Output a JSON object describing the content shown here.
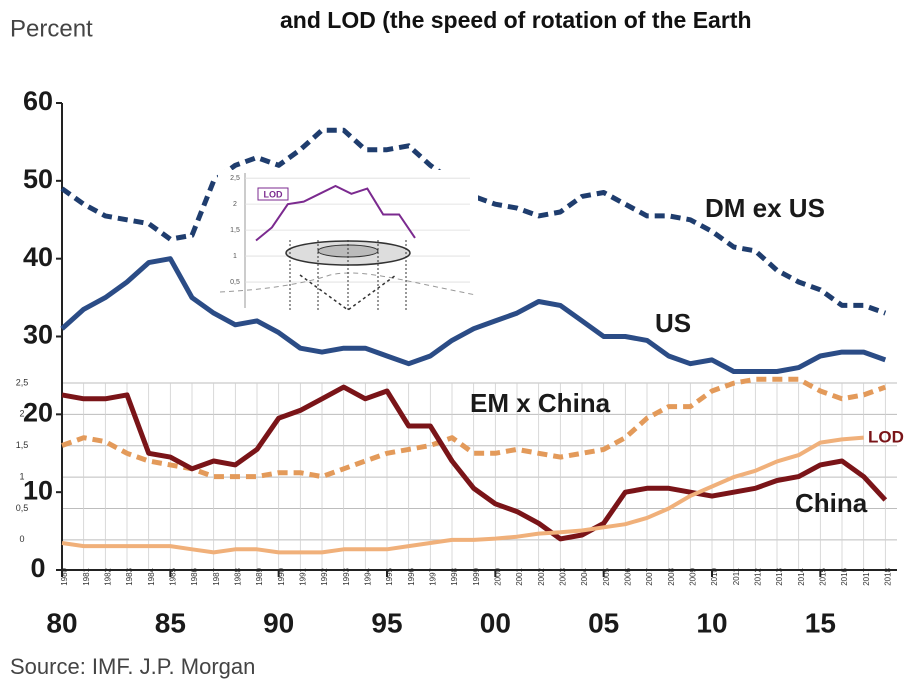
{
  "chart_data": {
    "type": "line",
    "title": "and LOD  (the speed of  rotation of the Earth",
    "y_label": "Percent",
    "source": "Source: IMF. J.P. Morgan",
    "x": [
      1980,
      1981,
      1982,
      1983,
      1984,
      1985,
      1986,
      1987,
      1988,
      1989,
      1990,
      1991,
      1992,
      1993,
      1994,
      1995,
      1996,
      1997,
      1998,
      1999,
      2000,
      2001,
      2002,
      2003,
      2004,
      2005,
      2006,
      2007,
      2008,
      2009,
      2010,
      2011,
      2012,
      2013,
      2014,
      2015,
      2016,
      2017,
      2018
    ],
    "xlim": [
      1980,
      2019
    ],
    "xticks": [
      {
        "value": 1980,
        "label": "80"
      },
      {
        "value": 1985,
        "label": "85"
      },
      {
        "value": 1990,
        "label": "90"
      },
      {
        "value": 1995,
        "label": "95"
      },
      {
        "value": 2000,
        "label": "00"
      },
      {
        "value": 2005,
        "label": "05"
      },
      {
        "value": 2010,
        "label": "10"
      },
      {
        "value": 2015,
        "label": "15"
      }
    ],
    "ylim": [
      0,
      60
    ],
    "yticks": [
      0,
      10,
      20,
      30,
      40,
      50,
      60
    ],
    "y2lim": [
      -0.48,
      6.96
    ],
    "y2ticks": [
      0,
      {
        "value": 0.5,
        "label": "0,5"
      },
      1,
      {
        "value": 1.5,
        "label": "1,5"
      },
      2,
      {
        "value": 2.5,
        "label": "2,5"
      }
    ],
    "x2_labels": [
      "1980",
      "1981",
      "1982",
      "1983",
      "1984",
      "1985",
      "1986",
      "1987",
      "1988",
      "1989",
      "1990",
      "1991",
      "1992",
      "1993",
      "1994",
      "1995",
      "1996",
      "1997",
      "1998",
      "1999",
      "2000",
      "2001",
      "2002",
      "2003",
      "2004",
      "2005",
      "2006",
      "2007",
      "2008",
      "2009",
      "2010",
      "2011",
      "2012",
      "2013",
      "2014",
      "2015",
      "2016",
      "2017",
      "2018"
    ],
    "series": [
      {
        "name": "DM ex US",
        "color": "#1f3d6e",
        "dashed": true,
        "values": [
          49,
          47,
          45.5,
          45,
          44.5,
          42.5,
          43,
          50,
          52,
          53,
          52,
          54,
          56.5,
          56.5,
          54,
          54,
          54.5,
          52,
          50,
          48,
          47,
          46.5,
          45.5,
          46,
          48,
          48.5,
          47,
          45.5,
          45.5,
          45,
          43.5,
          41.5,
          41,
          38.5,
          37,
          36,
          34,
          34,
          33
        ]
      },
      {
        "name": "US",
        "color": "#2b4c86",
        "dashed": false,
        "values": [
          31,
          33.5,
          35,
          37,
          39.5,
          40,
          35,
          33,
          31.5,
          32,
          30.5,
          28.5,
          28,
          28.5,
          28.5,
          27.5,
          26.5,
          27.5,
          29.5,
          31,
          32,
          33,
          34.5,
          34,
          32,
          30,
          30,
          29.5,
          27.5,
          26.5,
          27,
          25.5,
          25.5,
          25.5,
          26,
          27.5,
          28,
          28,
          27
        ]
      },
      {
        "name": "EM x China",
        "color": "#e39a5a",
        "dashed": true,
        "values": [
          16,
          17,
          16.5,
          15,
          14,
          13.5,
          13,
          12,
          12,
          12,
          12.5,
          12.5,
          12,
          13,
          14,
          15,
          15.5,
          16,
          17,
          15,
          15,
          15.5,
          15,
          14.5,
          15,
          15.5,
          17,
          19.5,
          21,
          21,
          23,
          24,
          24.5,
          24.5,
          24.5,
          23,
          22,
          22.5,
          23.5
        ]
      },
      {
        "name": "China",
        "color": "#7a1418",
        "dashed": false,
        "values": [
          22.5,
          22,
          22,
          22.5,
          15,
          14.5,
          13,
          14,
          13.5,
          15.5,
          19.5,
          20.5,
          22,
          23.5,
          22,
          23,
          18.5,
          18.5,
          14,
          10.5,
          8.5,
          7.5,
          6,
          4,
          4.5,
          6,
          10,
          10.5,
          10.5,
          10,
          9.5,
          10,
          10.5,
          11.5,
          12,
          13.5,
          14,
          12,
          9
        ]
      },
      {
        "name": "LOD",
        "color": "#f0b07a",
        "dashed": false,
        "axis": "y2",
        "values": [
          -0.05,
          -0.1,
          -0.1,
          -0.1,
          -0.1,
          -0.1,
          -0.15,
          -0.2,
          -0.15,
          -0.15,
          -0.2,
          -0.2,
          -0.2,
          -0.15,
          -0.15,
          -0.15,
          -0.1,
          -0.05,
          0,
          0,
          0.02,
          0.05,
          0.1,
          0.12,
          0.15,
          0.2,
          0.25,
          0.35,
          0.5,
          0.7,
          0.85,
          1.0,
          1.1,
          1.25,
          1.35,
          1.55,
          1.6,
          1.63,
          null
        ]
      }
    ],
    "inset": {
      "legend": "LOD",
      "color": "#7b2a8f",
      "ylim": [
        0,
        2.6
      ],
      "yticks": [
        {
          "value": 0.5,
          "label": "0,5"
        },
        1,
        {
          "value": 1.5,
          "label": "1,5"
        },
        2,
        {
          "value": 2.5,
          "label": "2,5"
        }
      ],
      "values": [
        1.3,
        1.55,
        2.0,
        2.05,
        2.2,
        2.35,
        2.2,
        2.3,
        1.8,
        1.8,
        1.35
      ]
    }
  }
}
